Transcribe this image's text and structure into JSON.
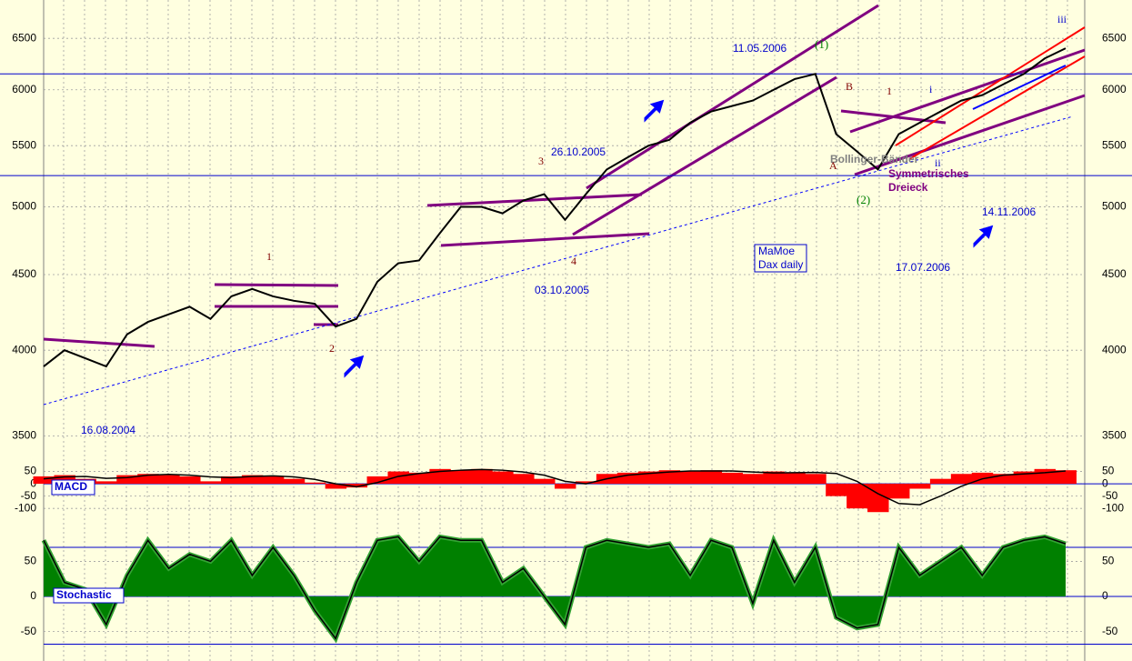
{
  "chart_data": [
    {
      "type": "line",
      "log_scale": true,
      "ylim": [
        3400,
        6900
      ],
      "yticks": [
        3500,
        4000,
        4500,
        5000,
        5500,
        6000,
        6500
      ],
      "grid": true,
      "color": "#000000",
      "values": [
        3900,
        4000,
        3950,
        3900,
        4100,
        4180,
        4230,
        4280,
        4200,
        4350,
        4400,
        4350,
        4320,
        4300,
        4150,
        4200,
        4450,
        4580,
        4600,
        4800,
        5000,
        5000,
        4950,
        5050,
        5100,
        4900,
        5100,
        5300,
        5400,
        5500,
        5550,
        5700,
        5800,
        5850,
        5900,
        6000,
        6100,
        6150,
        5600,
        5450,
        5300,
        5600,
        5700,
        5800,
        5900,
        5950,
        6050,
        6150,
        6300,
        6400
      ],
      "reference_lines": [
        6150,
        5250
      ],
      "reference_color": "#0000cc",
      "annotations": [
        "11.05.2006",
        "26.10.2005",
        "03.10.2005",
        "16.08.2004",
        "17.07.2006",
        "14.11.2006",
        "MaMoe",
        "Dax daily",
        "Bollinger-Bänder",
        "Symmetrisches",
        "Dreieck",
        "1",
        "2",
        "3",
        "4",
        "(1)",
        "A",
        "B",
        "(2)",
        "1",
        "i",
        "ii",
        "iii"
      ]
    },
    {
      "type": "macd",
      "title": "MACD",
      "ylim": [
        -140,
        100
      ],
      "yticks": [
        -100,
        -50,
        0,
        50
      ],
      "grid": true,
      "series": [
        {
          "color": "#ff0000",
          "values": [
            30,
            35,
            20,
            10,
            35,
            40,
            35,
            30,
            10,
            30,
            35,
            30,
            20,
            5,
            -20,
            -15,
            30,
            50,
            45,
            60,
            55,
            60,
            50,
            40,
            20,
            -20,
            10,
            40,
            45,
            50,
            55,
            50,
            55,
            45,
            40,
            50,
            45,
            40,
            -50,
            -100,
            -115,
            -60,
            -20,
            20,
            40,
            45,
            40,
            50,
            60,
            55
          ]
        },
        {
          "color": "#000000",
          "values": [
            20,
            28,
            30,
            22,
            25,
            35,
            38,
            35,
            28,
            25,
            30,
            32,
            28,
            18,
            0,
            -12,
            5,
            30,
            42,
            50,
            55,
            58,
            55,
            48,
            35,
            10,
            0,
            20,
            35,
            42,
            48,
            52,
            52,
            52,
            48,
            44,
            45,
            46,
            42,
            10,
            -40,
            -80,
            -85,
            -50,
            -10,
            20,
            35,
            40,
            45,
            52
          ]
        }
      ]
    },
    {
      "type": "area",
      "title": "Stochastic",
      "ylim": [
        -92,
        105
      ],
      "yticks": [
        -50,
        0,
        50
      ],
      "grid": true,
      "color": "#008000",
      "values": [
        80,
        20,
        10,
        -40,
        30,
        80,
        40,
        60,
        50,
        80,
        30,
        70,
        30,
        -20,
        -60,
        20,
        80,
        85,
        50,
        85,
        80,
        80,
        20,
        40,
        0,
        -40,
        70,
        80,
        75,
        70,
        75,
        30,
        80,
        70,
        -10,
        80,
        20,
        70,
        -30,
        -45,
        -40,
        70,
        30,
        50,
        70,
        30,
        70,
        80,
        85,
        75
      ],
      "levels": [
        70,
        -68
      ],
      "level_color": "#0000cc"
    }
  ]
}
